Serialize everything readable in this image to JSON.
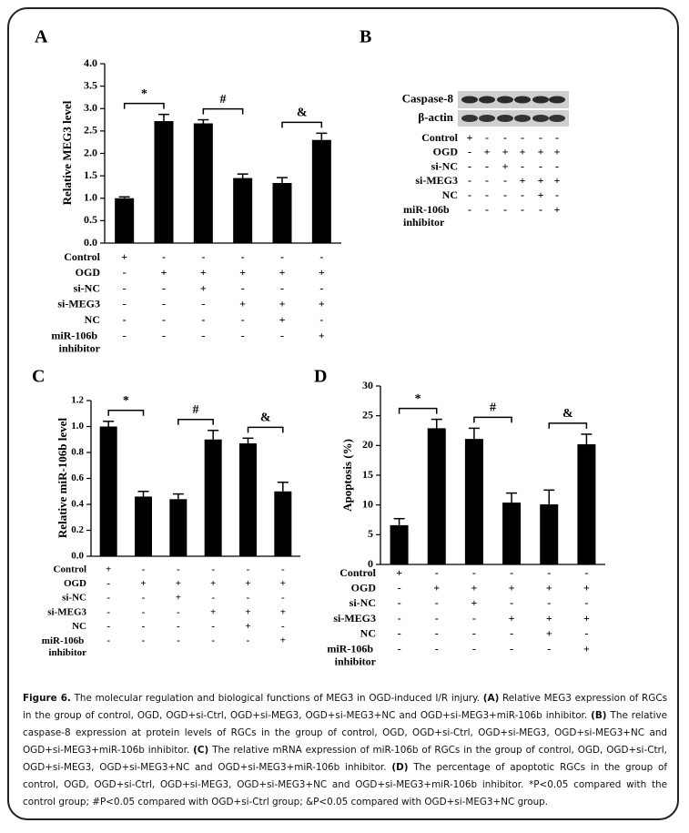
{
  "chart_data": [
    {
      "type": "bar",
      "label": "A",
      "ylabel": "Relative MEG3 level",
      "color": "#000000",
      "values": [
        1.0,
        2.72,
        2.67,
        1.45,
        1.34,
        2.3
      ],
      "errors": [
        0.03,
        0.15,
        0.08,
        0.09,
        0.12,
        0.15
      ],
      "ylim": [
        0,
        4
      ],
      "yticks": [
        {
          "value": 0,
          "label": "0.0"
        },
        0.5,
        {
          "value": 1,
          "label": "1.0"
        },
        1.5,
        {
          "value": 2,
          "label": "2.0"
        },
        2.5,
        {
          "value": 3,
          "label": "3.0"
        },
        3.5,
        {
          "value": 4,
          "label": "4.0"
        }
      ],
      "annotations": [
        "*",
        "#",
        "&"
      ],
      "rows": [
        {
          "name": "Control",
          "signs": [
            "+",
            "-",
            "-",
            "-",
            "-",
            "-"
          ]
        },
        {
          "name": "OGD",
          "signs": [
            "-",
            "+",
            "+",
            "+",
            "+",
            "+"
          ]
        },
        {
          "name": "si-NC",
          "signs": [
            "-",
            "-",
            "+",
            "-",
            "-",
            "-"
          ]
        },
        {
          "name": "si-MEG3",
          "signs": [
            "-",
            "-",
            "-",
            "+",
            "+",
            "+"
          ]
        },
        {
          "name": "NC",
          "signs": [
            "-",
            "-",
            "-",
            "-",
            "+",
            "-"
          ]
        },
        {
          "name": "miR-106b inhibitor",
          "signs": [
            "-",
            "-",
            "-",
            "-",
            "-",
            "+"
          ]
        }
      ]
    },
    {
      "type": "bar",
      "label": "C",
      "ylabel": "Relative miR-106b level",
      "color": "#000000",
      "values": [
        1.0,
        0.46,
        0.44,
        0.9,
        0.87,
        0.5
      ],
      "errors": [
        0.04,
        0.04,
        0.04,
        0.07,
        0.04,
        0.07
      ],
      "ylim": [
        0,
        1.2
      ],
      "yticks": [
        {
          "value": 0,
          "label": "0.0"
        },
        0.2,
        0.4,
        0.6,
        0.8,
        {
          "value": 1,
          "label": "1.0"
        },
        1.2
      ],
      "annotations": [
        "*",
        "#",
        "&"
      ],
      "rows": [
        {
          "name": "Control",
          "signs": [
            "+",
            "-",
            "-",
            "-",
            "-",
            "-"
          ]
        },
        {
          "name": "OGD",
          "signs": [
            "-",
            "+",
            "+",
            "+",
            "+",
            "+"
          ]
        },
        {
          "name": "si-NC",
          "signs": [
            "-",
            "-",
            "+",
            "-",
            "-",
            "-"
          ]
        },
        {
          "name": "si-MEG3",
          "signs": [
            "-",
            "-",
            "-",
            "+",
            "+",
            "+"
          ]
        },
        {
          "name": "NC",
          "signs": [
            "-",
            "-",
            "-",
            "-",
            "+",
            "-"
          ]
        },
        {
          "name": "miR-106b inhibitor",
          "signs": [
            "-",
            "-",
            "-",
            "-",
            "-",
            "+"
          ]
        }
      ]
    },
    {
      "type": "bar",
      "label": "D",
      "ylabel": "Apoptosis (%)",
      "color": "#000000",
      "values": [
        6.6,
        22.9,
        21.1,
        10.4,
        10.1,
        20.2
      ],
      "errors": [
        1.1,
        1.5,
        1.8,
        1.6,
        2.4,
        1.7
      ],
      "ylim": [
        0,
        30
      ],
      "yticks": [
        0,
        5,
        10,
        15,
        20,
        25,
        30
      ],
      "annotations": [
        "*",
        "#",
        "&"
      ],
      "rows": [
        {
          "name": "Control",
          "signs": [
            "+",
            "-",
            "-",
            "-",
            "-",
            "-"
          ]
        },
        {
          "name": "OGD",
          "signs": [
            "-",
            "+",
            "+",
            "+",
            "+",
            "+"
          ]
        },
        {
          "name": "si-NC",
          "signs": [
            "-",
            "-",
            "+",
            "-",
            "-",
            "-"
          ]
        },
        {
          "name": "si-MEG3",
          "signs": [
            "-",
            "-",
            "-",
            "+",
            "+",
            "+"
          ]
        },
        {
          "name": "NC",
          "signs": [
            "-",
            "-",
            "-",
            "-",
            "+",
            "-"
          ]
        },
        {
          "name": "miR-106b inhibitor",
          "signs": [
            "-",
            "-",
            "-",
            "-",
            "-",
            "+"
          ]
        }
      ]
    }
  ],
  "blot": {
    "label": "B",
    "bands": [
      "Caspase-8",
      "β-actin"
    ],
    "rows": [
      {
        "name": "Control",
        "signs": [
          "+",
          "-",
          "-",
          "-",
          "-",
          "-"
        ]
      },
      {
        "name": "OGD",
        "signs": [
          "-",
          "+",
          "+",
          "+",
          "+",
          "+"
        ]
      },
      {
        "name": "si-NC",
        "signs": [
          "-",
          "-",
          "+",
          "-",
          "-",
          "-"
        ]
      },
      {
        "name": "si-MEG3",
        "signs": [
          "-",
          "-",
          "-",
          "+",
          "+",
          "+"
        ]
      },
      {
        "name": "NC",
        "signs": [
          "-",
          "-",
          "-",
          "-",
          "+",
          "-"
        ]
      },
      {
        "name": "miR-106b inhibitor",
        "signs": [
          "-",
          "-",
          "-",
          "-",
          "-",
          "+"
        ]
      }
    ]
  },
  "caption": [
    {
      "text": "Figure 6.",
      "bold": true
    },
    {
      "text": " The molecular regulation and biological functions of MEG3 in OGD-induced I/R injury. ",
      "bold": false
    },
    {
      "text": "(A)",
      "bold": true
    },
    {
      "text": " Relative MEG3 expression of RGCs in the group of control, OGD, OGD+si-Ctrl, OGD+si-MEG3, OGD+si-MEG3+NC and OGD+si-MEG3+miR-106b inhibitor. ",
      "bold": false
    },
    {
      "text": "(B)",
      "bold": true
    },
    {
      "text": " The relative caspase-8 expression at protein levels of RGCs in the group of control, OGD, OGD+si-Ctrl, OGD+si-MEG3, OGD+si-MEG3+NC and OGD+si-MEG3+miR-106b inhibitor. ",
      "bold": false
    },
    {
      "text": "(C)",
      "bold": true
    },
    {
      "text": " The relative mRNA expression of miR-106b of RGCs in the group of control, OGD, OGD+si-Ctrl, OGD+si-MEG3, OGD+si-MEG3+NC and OGD+si-MEG3+miR-106b inhibitor. ",
      "bold": false
    },
    {
      "text": "(D)",
      "bold": true
    },
    {
      "text": " The percentage of apoptotic RGCs in the group of control, OGD, OGD+si-Ctrl, OGD+si-MEG3, OGD+si-MEG3+NC and OGD+si-MEG3+miR-106b inhibitor. *P<0.05 compared with the control group; #P<0.05 compared with OGD+si-Ctrl group; &P<0.05 compared with OGD+si-MEG3+NC group.",
      "bold": false
    }
  ]
}
